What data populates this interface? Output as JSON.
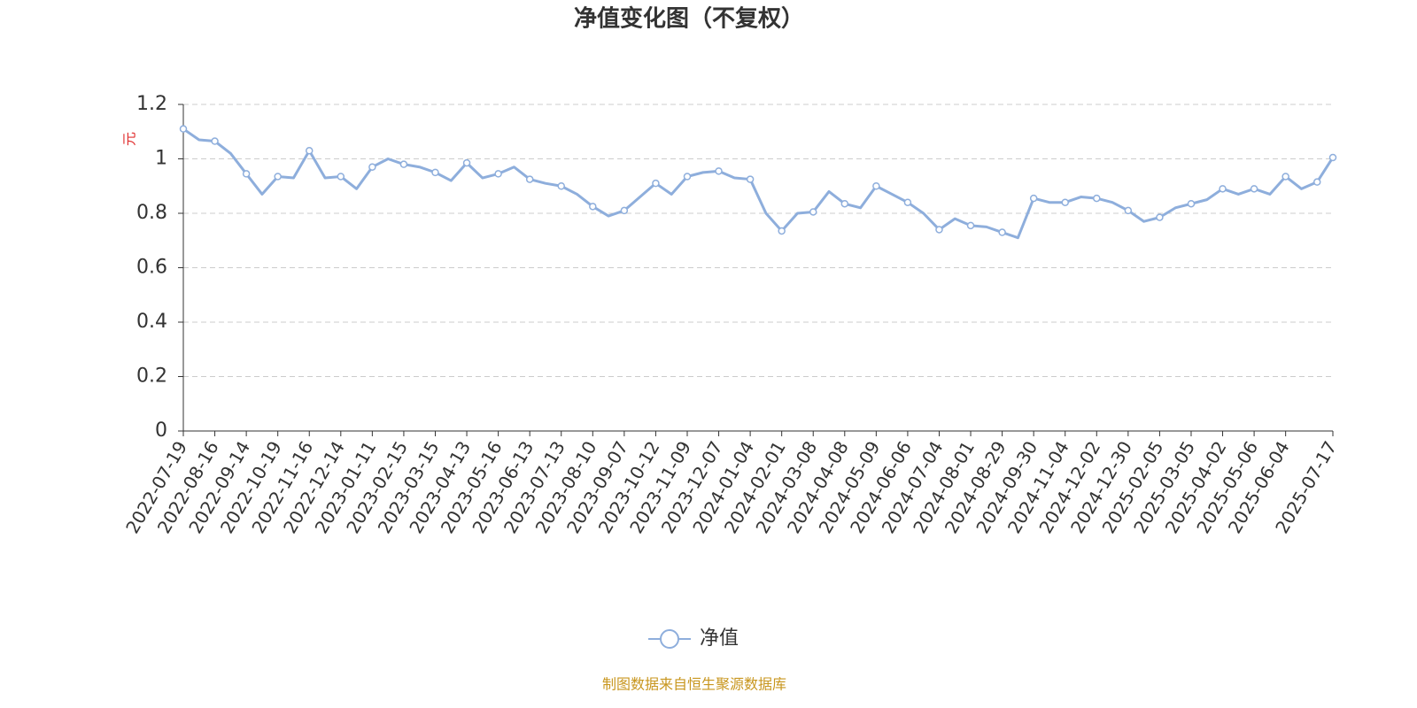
{
  "chart_data": {
    "type": "line",
    "title": "净值变化图（不复权）",
    "y_axis_label": "元",
    "categories": [
      "2022-07-19",
      null,
      "2022-08-16",
      null,
      "2022-09-14",
      null,
      "2022-10-19",
      null,
      "2022-11-16",
      null,
      "2022-12-14",
      null,
      "2023-01-11",
      null,
      "2023-02-15",
      null,
      "2023-03-15",
      null,
      "2023-04-13",
      null,
      "2023-05-16",
      null,
      "2023-06-13",
      null,
      "2023-07-13",
      null,
      "2023-08-10",
      null,
      "2023-09-07",
      null,
      "2023-10-12",
      null,
      "2023-11-09",
      null,
      "2023-12-07",
      null,
      "2024-01-04",
      null,
      "2024-02-01",
      null,
      "2024-03-08",
      null,
      "2024-04-08",
      null,
      "2024-05-09",
      null,
      "2024-06-06",
      null,
      "2024-07-04",
      null,
      "2024-08-01",
      null,
      "2024-08-29",
      null,
      "2024-09-30",
      null,
      "2024-11-04",
      null,
      "2024-12-02",
      null,
      "2024-12-30",
      null,
      "2025-02-05",
      null,
      "2025-03-05",
      null,
      "2025-04-02",
      null,
      "2025-05-06",
      null,
      "2025-06-04",
      null,
      null,
      "2025-07-17"
    ],
    "series": [
      {
        "name": "净值",
        "color": "#8eaedc",
        "values": [
          1.11,
          1.07,
          1.065,
          1.02,
          0.945,
          0.87,
          0.935,
          0.93,
          1.03,
          0.93,
          0.935,
          0.89,
          0.97,
          1.0,
          0.98,
          0.97,
          0.95,
          0.92,
          0.985,
          0.93,
          0.945,
          0.97,
          0.925,
          0.91,
          0.9,
          0.87,
          0.825,
          0.79,
          0.81,
          0.86,
          0.91,
          0.87,
          0.935,
          0.95,
          0.955,
          0.93,
          0.925,
          0.8,
          0.735,
          0.8,
          0.805,
          0.88,
          0.835,
          0.82,
          0.9,
          0.87,
          0.84,
          0.8,
          0.74,
          0.78,
          0.755,
          0.75,
          0.73,
          0.71,
          0.855,
          0.84,
          0.84,
          0.86,
          0.855,
          0.84,
          0.81,
          0.77,
          0.785,
          0.82,
          0.835,
          0.85,
          0.89,
          0.87,
          0.89,
          0.87,
          0.935,
          0.89,
          0.915,
          1.005
        ]
      }
    ],
    "ylim": [
      0,
      1.2
    ],
    "yticks": [
      0,
      0.2,
      0.4,
      0.6,
      0.8,
      1,
      1.2
    ],
    "grid": true,
    "legend": "bottom",
    "source": "制图数据来自恒生聚源数据库"
  }
}
